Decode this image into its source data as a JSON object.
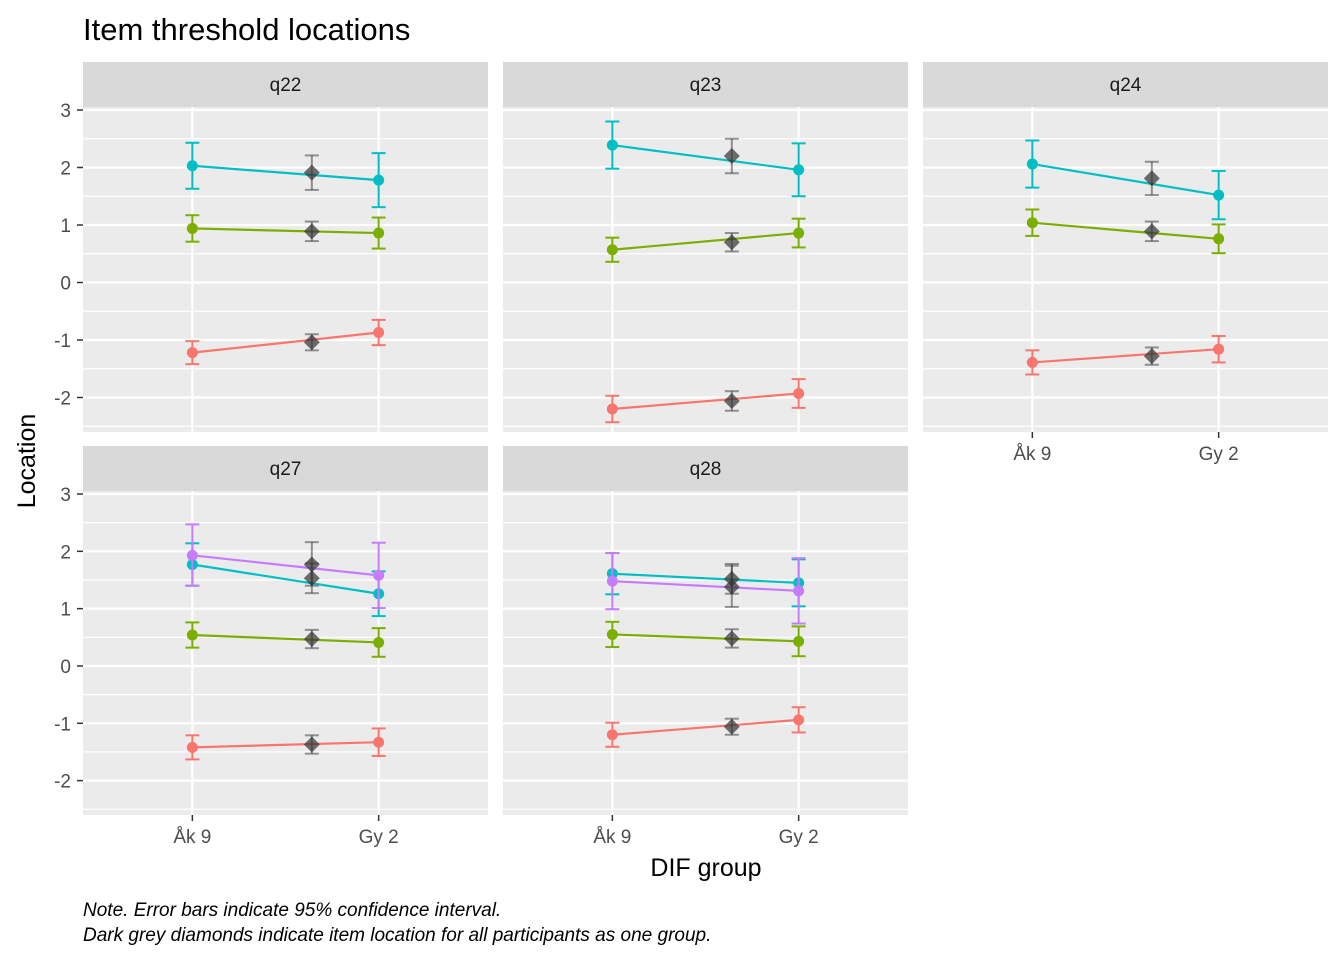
{
  "chart_data": {
    "type": "line",
    "title": "Item threshold locations",
    "xlabel": "DIF group",
    "ylabel": "Location",
    "x_categories": [
      "Åk 9",
      "Gy 2"
    ],
    "ylim": [
      -2.6,
      3.0
    ],
    "y_ticks": [
      -2,
      -1,
      0,
      1,
      2,
      3
    ],
    "y_tick_labels": [
      "-2",
      "-1",
      "0",
      "1",
      "2",
      "3"
    ],
    "grid": true,
    "threshold_colors": [
      "#F8766D",
      "#7CAE00",
      "#00BFC4",
      "#C77CFF"
    ],
    "overall_color": "#333333",
    "caption_lines": [
      "Note. Error bars indicate 95% confidence interval.",
      "Dark grey diamonds indicate item location for all participants as one group."
    ],
    "panels": [
      {
        "label": "q22",
        "thresholds": [
          {
            "aak9": -1.22,
            "aak9_ci": [
              -1.42,
              -1.02
            ],
            "gy2": -0.87,
            "gy2_ci": [
              -1.09,
              -0.65
            ],
            "overall": -1.04,
            "overall_ci": [
              -1.18,
              -0.9
            ]
          },
          {
            "aak9": 0.94,
            "aak9_ci": [
              0.71,
              1.17
            ],
            "gy2": 0.86,
            "gy2_ci": [
              0.59,
              1.13
            ],
            "overall": 0.89,
            "overall_ci": [
              0.72,
              1.06
            ]
          },
          {
            "aak9": 2.03,
            "aak9_ci": [
              1.63,
              2.43
            ],
            "gy2": 1.78,
            "gy2_ci": [
              1.31,
              2.25
            ],
            "overall": 1.91,
            "overall_ci": [
              1.61,
              2.21
            ]
          }
        ]
      },
      {
        "label": "q23",
        "thresholds": [
          {
            "aak9": -2.2,
            "aak9_ci": [
              -2.43,
              -1.97
            ],
            "gy2": -1.93,
            "gy2_ci": [
              -2.18,
              -1.68
            ],
            "overall": -2.06,
            "overall_ci": [
              -2.23,
              -1.89
            ]
          },
          {
            "aak9": 0.57,
            "aak9_ci": [
              0.36,
              0.78
            ],
            "gy2": 0.86,
            "gy2_ci": [
              0.61,
              1.11
            ],
            "overall": 0.7,
            "overall_ci": [
              0.54,
              0.86
            ]
          },
          {
            "aak9": 2.39,
            "aak9_ci": [
              1.98,
              2.8
            ],
            "gy2": 1.96,
            "gy2_ci": [
              1.5,
              2.42
            ],
            "overall": 2.2,
            "overall_ci": [
              1.9,
              2.5
            ]
          }
        ]
      },
      {
        "label": "q24",
        "thresholds": [
          {
            "aak9": -1.39,
            "aak9_ci": [
              -1.6,
              -1.18
            ],
            "gy2": -1.16,
            "gy2_ci": [
              -1.39,
              -0.93
            ],
            "overall": -1.28,
            "overall_ci": [
              -1.43,
              -1.13
            ]
          },
          {
            "aak9": 1.04,
            "aak9_ci": [
              0.81,
              1.27
            ],
            "gy2": 0.76,
            "gy2_ci": [
              0.51,
              1.01
            ],
            "overall": 0.89,
            "overall_ci": [
              0.72,
              1.06
            ]
          },
          {
            "aak9": 2.06,
            "aak9_ci": [
              1.65,
              2.47
            ],
            "gy2": 1.52,
            "gy2_ci": [
              1.1,
              1.94
            ],
            "overall": 1.81,
            "overall_ci": [
              1.52,
              2.1
            ]
          }
        ]
      },
      {
        "label": "q27",
        "thresholds": [
          {
            "aak9": -1.42,
            "aak9_ci": [
              -1.63,
              -1.21
            ],
            "gy2": -1.33,
            "gy2_ci": [
              -1.57,
              -1.09
            ],
            "overall": -1.37,
            "overall_ci": [
              -1.53,
              -1.21
            ]
          },
          {
            "aak9": 0.54,
            "aak9_ci": [
              0.32,
              0.76
            ],
            "gy2": 0.41,
            "gy2_ci": [
              0.16,
              0.66
            ],
            "overall": 0.47,
            "overall_ci": [
              0.31,
              0.63
            ]
          },
          {
            "aak9": 1.77,
            "aak9_ci": [
              1.4,
              2.14
            ],
            "gy2": 1.26,
            "gy2_ci": [
              0.87,
              1.65
            ],
            "overall": 1.53,
            "overall_ci": [
              1.27,
              1.79
            ]
          },
          {
            "aak9": 1.93,
            "aak9_ci": [
              1.4,
              2.47
            ],
            "gy2": 1.58,
            "gy2_ci": [
              1.01,
              2.15
            ],
            "overall": 1.77,
            "overall_ci": [
              1.4,
              2.16
            ]
          }
        ]
      },
      {
        "label": "q28",
        "thresholds": [
          {
            "aak9": -1.2,
            "aak9_ci": [
              -1.41,
              -0.99
            ],
            "gy2": -0.94,
            "gy2_ci": [
              -1.16,
              -0.72
            ],
            "overall": -1.06,
            "overall_ci": [
              -1.2,
              -0.92
            ]
          },
          {
            "aak9": 0.55,
            "aak9_ci": [
              0.33,
              0.77
            ],
            "gy2": 0.43,
            "gy2_ci": [
              0.17,
              0.69
            ],
            "overall": 0.48,
            "overall_ci": [
              0.32,
              0.64
            ]
          },
          {
            "aak9": 1.61,
            "aak9_ci": [
              1.25,
              1.97
            ],
            "gy2": 1.45,
            "gy2_ci": [
              1.04,
              1.86
            ],
            "overall": 1.52,
            "overall_ci": [
              1.26,
              1.78
            ]
          },
          {
            "aak9": 1.48,
            "aak9_ci": [
              0.99,
              1.97
            ],
            "gy2": 1.31,
            "gy2_ci": [
              0.74,
              1.88
            ],
            "overall": 1.38,
            "overall_ci": [
              1.03,
              1.75
            ]
          }
        ]
      }
    ]
  }
}
